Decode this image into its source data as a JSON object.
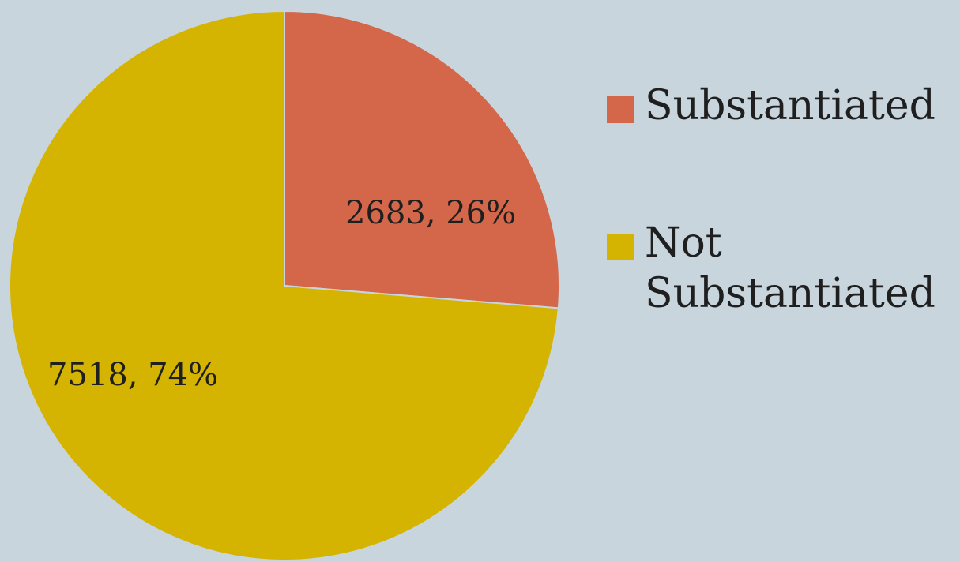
{
  "chart_data": {
    "type": "pie",
    "title": "",
    "series": [
      {
        "name": "",
        "slices": [
          {
            "label": "Substantiated",
            "value": 2683,
            "percent": "26%",
            "display": "2683, 26%",
            "color": "#d4674a"
          },
          {
            "label": "Not Substantiated",
            "value": 7518,
            "percent": "74%",
            "display": "7518, 74%",
            "color": "#d4b400"
          }
        ]
      }
    ],
    "legend": {
      "placement": "right",
      "items": [
        "Substantiated",
        "Not Substantiated"
      ]
    }
  },
  "colors": {
    "background": "#c8d5dd",
    "slice_border": "#c8d5dd"
  }
}
